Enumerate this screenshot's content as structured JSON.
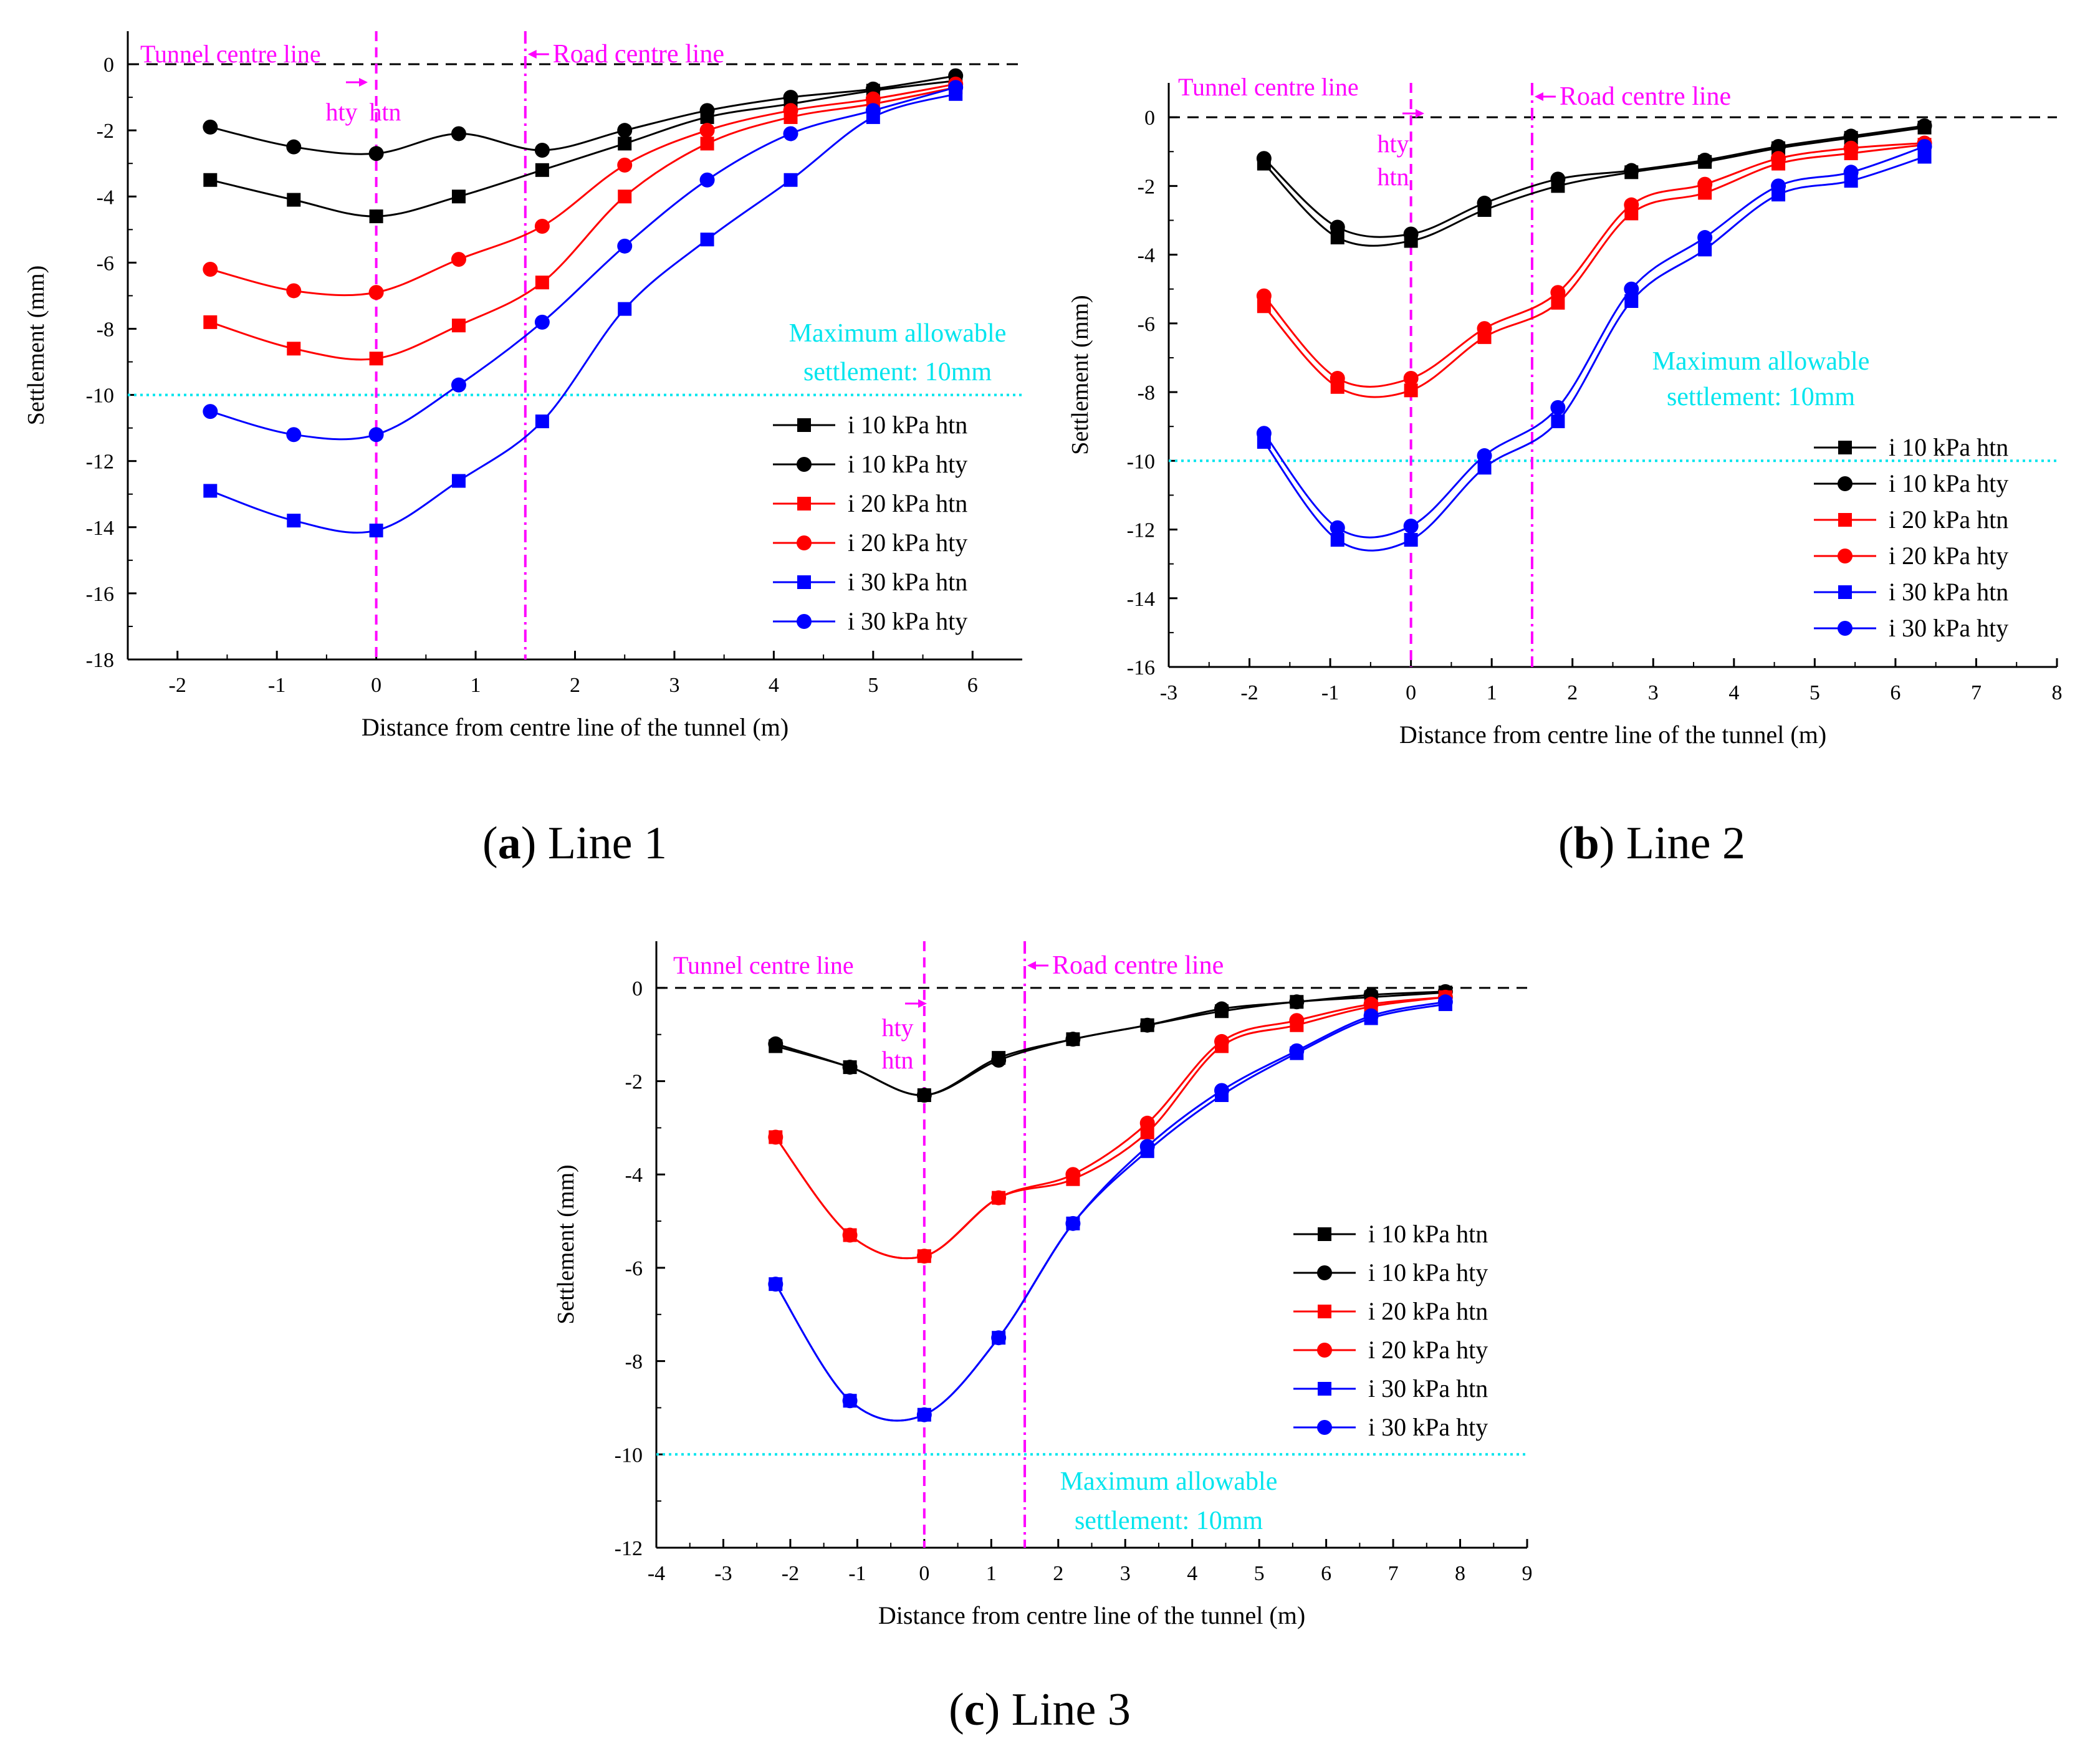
{
  "colors": {
    "black": "#000000",
    "red": "#ff0000",
    "blue": "#0000ff",
    "magenta": "#ff00ff",
    "cyan": "#00e5ee",
    "dash": "#000000"
  },
  "chart_data": [
    {
      "type": "line",
      "caption_letter": "a",
      "caption_text": " Line 1",
      "xlabel": "Distance from centre line of the tunnel (m)",
      "ylabel": "Settlement  (mm)",
      "xlim": [
        -2.5,
        6.5
      ],
      "ylim": [
        -18,
        1
      ],
      "xticks": [
        -2,
        -1,
        0,
        1,
        2,
        3,
        4,
        5,
        6
      ],
      "yticks": [
        0,
        -2,
        -4,
        -6,
        -8,
        -10,
        -12,
        -14,
        -16,
        -18
      ],
      "tunnel_label": "Tunnel centre line",
      "road_label": "Road centre line",
      "tunnel_x": 0,
      "road_x": 1.5,
      "hty_label": "hty",
      "htn_label": "htn",
      "limit_y": -10,
      "limit_label_1": "Maximum allowable",
      "limit_label_2": "settlement: 10mm",
      "series": [
        {
          "name": "i 10 kPa htn",
          "color": "black",
          "marker": "square",
          "x": [
            -1.67,
            -0.83,
            0,
            0.83,
            1.67,
            2.5,
            3.33,
            4.17,
            5.0,
            5.83
          ],
          "values": [
            -3.5,
            -4.1,
            -4.6,
            -4.0,
            -3.2,
            -2.4,
            -1.6,
            -1.2,
            -0.8,
            -0.5
          ]
        },
        {
          "name": "i 10 kPa hty",
          "color": "black",
          "marker": "circle",
          "x": [
            -1.67,
            -0.83,
            0,
            0.83,
            1.67,
            2.5,
            3.33,
            4.17,
            5.0,
            5.83
          ],
          "values": [
            -1.9,
            -2.5,
            -2.7,
            -2.1,
            -2.6,
            -2.0,
            -1.4,
            -1.0,
            -0.75,
            -0.35
          ]
        },
        {
          "name": "i 20 kPa htn",
          "color": "red",
          "marker": "square",
          "x": [
            -1.67,
            -0.83,
            0,
            0.83,
            1.67,
            2.5,
            3.33,
            4.17,
            5.0,
            5.83
          ],
          "values": [
            -7.8,
            -8.6,
            -8.9,
            -7.9,
            -6.6,
            -4.0,
            -2.4,
            -1.6,
            -1.2,
            -0.7
          ]
        },
        {
          "name": "i 20 kPa hty",
          "color": "red",
          "marker": "circle",
          "x": [
            -1.67,
            -0.83,
            0,
            0.83,
            1.67,
            2.5,
            3.33,
            4.17,
            5.0,
            5.83
          ],
          "values": [
            -6.2,
            -6.85,
            -6.9,
            -5.9,
            -4.9,
            -3.05,
            -2.0,
            -1.4,
            -1.05,
            -0.6
          ]
        },
        {
          "name": "i 30 kPa htn",
          "color": "blue",
          "marker": "square",
          "x": [
            -1.67,
            -0.83,
            0,
            0.83,
            1.67,
            2.5,
            3.33,
            4.17,
            5.0,
            5.83
          ],
          "values": [
            -12.9,
            -13.8,
            -14.1,
            -12.6,
            -10.8,
            -7.4,
            -5.3,
            -3.5,
            -1.6,
            -0.9
          ]
        },
        {
          "name": "i 30 kPa hty",
          "color": "blue",
          "marker": "circle",
          "x": [
            -1.67,
            -0.83,
            0,
            0.83,
            1.67,
            2.5,
            3.33,
            4.17,
            5.0,
            5.83
          ],
          "values": [
            -10.5,
            -11.2,
            -11.2,
            -9.7,
            -7.8,
            -5.5,
            -3.5,
            -2.1,
            -1.4,
            -0.7
          ]
        }
      ]
    },
    {
      "type": "line",
      "caption_letter": "b",
      "caption_text": " Line 2",
      "xlabel": "Distance from centre line of the tunnel (m)",
      "ylabel": "Settlement  (mm)",
      "xlim": [
        -3,
        8
      ],
      "ylim": [
        -16,
        1
      ],
      "xticks": [
        -3,
        -2,
        -1,
        0,
        1,
        2,
        3,
        4,
        5,
        6,
        7,
        8
      ],
      "yticks": [
        0,
        -2,
        -4,
        -6,
        -8,
        -10,
        -12,
        -14,
        -16
      ],
      "tunnel_label": "Tunnel centre line",
      "road_label": "Road centre line",
      "tunnel_x": 0,
      "road_x": 1.5,
      "hty_label": "hty",
      "htn_label": "htn",
      "limit_y": -10,
      "limit_label_1": "Maximum allowable",
      "limit_label_2": "settlement: 10mm",
      "series": [
        {
          "name": "i 10 kPa htn",
          "color": "black",
          "marker": "square",
          "x": [
            -1.82,
            -0.91,
            0,
            0.91,
            1.82,
            2.73,
            3.64,
            4.55,
            5.45,
            6.36
          ],
          "values": [
            -1.35,
            -3.5,
            -3.6,
            -2.7,
            -2.0,
            -1.6,
            -1.3,
            -0.9,
            -0.6,
            -0.3
          ]
        },
        {
          "name": "i 10 kPa hty",
          "color": "black",
          "marker": "circle",
          "x": [
            -1.82,
            -0.91,
            0,
            0.91,
            1.82,
            2.73,
            3.64,
            4.55,
            5.45,
            6.36
          ],
          "values": [
            -1.2,
            -3.2,
            -3.4,
            -2.5,
            -1.8,
            -1.55,
            -1.25,
            -0.85,
            -0.55,
            -0.25
          ]
        },
        {
          "name": "i 20 kPa htn",
          "color": "red",
          "marker": "square",
          "x": [
            -1.82,
            -0.91,
            0,
            0.91,
            1.82,
            2.73,
            3.64,
            4.55,
            5.45,
            6.36
          ],
          "values": [
            -5.5,
            -7.85,
            -7.95,
            -6.4,
            -5.4,
            -2.8,
            -2.2,
            -1.35,
            -1.05,
            -0.8
          ]
        },
        {
          "name": "i 20 kPa hty",
          "color": "red",
          "marker": "circle",
          "x": [
            -1.82,
            -0.91,
            0,
            0.91,
            1.82,
            2.73,
            3.64,
            4.55,
            5.45,
            6.36
          ],
          "values": [
            -5.2,
            -7.6,
            -7.6,
            -6.15,
            -5.1,
            -2.55,
            -1.95,
            -1.2,
            -0.9,
            -0.75
          ]
        },
        {
          "name": "i 30 kPa htn",
          "color": "blue",
          "marker": "square",
          "x": [
            -1.82,
            -0.91,
            0,
            0.91,
            1.82,
            2.73,
            3.64,
            4.55,
            5.45,
            6.36
          ],
          "values": [
            -9.45,
            -12.3,
            -12.3,
            -10.2,
            -8.85,
            -5.35,
            -3.85,
            -2.25,
            -1.85,
            -1.15
          ]
        },
        {
          "name": "i 30 kPa hty",
          "color": "blue",
          "marker": "circle",
          "x": [
            -1.82,
            -0.91,
            0,
            0.91,
            1.82,
            2.73,
            3.64,
            4.55,
            5.45,
            6.36
          ],
          "values": [
            -9.2,
            -11.95,
            -11.9,
            -9.85,
            -8.45,
            -5.0,
            -3.5,
            -2.0,
            -1.6,
            -0.85
          ]
        }
      ]
    },
    {
      "type": "line",
      "caption_letter": "c",
      "caption_text": " Line 3",
      "xlabel": "Distance from centre line of the tunnel (m)",
      "ylabel": "Settlement  (mm)",
      "xlim": [
        -4,
        9
      ],
      "ylim": [
        -12,
        1
      ],
      "xticks": [
        -4,
        -3,
        -2,
        -1,
        0,
        1,
        2,
        3,
        4,
        5,
        6,
        7,
        8,
        9
      ],
      "yticks": [
        0,
        -2,
        -4,
        -6,
        -8,
        -10,
        -12
      ],
      "tunnel_label": "Tunnel centre line",
      "road_label": "Road centre line",
      "tunnel_x": 0,
      "road_x": 1.5,
      "hty_label": "hty",
      "htn_label": "htn",
      "limit_y": -10,
      "limit_label_1": "Maximum allowable",
      "limit_label_2": "settlement: 10mm",
      "series": [
        {
          "name": "i 10 kPa htn",
          "color": "black",
          "marker": "square",
          "x": [
            -2.22,
            -1.11,
            0,
            1.11,
            2.22,
            3.33,
            4.44,
            5.56,
            6.67,
            7.78
          ],
          "values": [
            -1.25,
            -1.7,
            -2.3,
            -1.5,
            -1.1,
            -0.8,
            -0.5,
            -0.3,
            -0.2,
            -0.1
          ]
        },
        {
          "name": "i 10 kPa hty",
          "color": "black",
          "marker": "circle",
          "x": [
            -2.22,
            -1.11,
            0,
            1.11,
            2.22,
            3.33,
            4.44,
            5.56,
            6.67,
            7.78
          ],
          "values": [
            -1.2,
            -1.7,
            -2.3,
            -1.55,
            -1.1,
            -0.8,
            -0.45,
            -0.3,
            -0.15,
            -0.08
          ]
        },
        {
          "name": "i 20 kPa htn",
          "color": "red",
          "marker": "square",
          "x": [
            -2.22,
            -1.11,
            0,
            1.11,
            2.22,
            3.33,
            4.44,
            5.56,
            6.67,
            7.78
          ],
          "values": [
            -3.2,
            -5.3,
            -5.75,
            -4.5,
            -4.1,
            -3.1,
            -1.25,
            -0.8,
            -0.4,
            -0.2
          ]
        },
        {
          "name": "i 20 kPa hty",
          "color": "red",
          "marker": "circle",
          "x": [
            -2.22,
            -1.11,
            0,
            1.11,
            2.22,
            3.33,
            4.44,
            5.56,
            6.67,
            7.78
          ],
          "values": [
            -3.2,
            -5.3,
            -5.75,
            -4.5,
            -4.0,
            -2.9,
            -1.15,
            -0.7,
            -0.35,
            -0.2
          ]
        },
        {
          "name": "i 30 kPa htn",
          "color": "blue",
          "marker": "square",
          "x": [
            -2.22,
            -1.11,
            0,
            1.11,
            2.22,
            3.33,
            4.44,
            5.56,
            6.67,
            7.78
          ],
          "values": [
            -6.35,
            -8.85,
            -9.15,
            -7.5,
            -5.05,
            -3.5,
            -2.3,
            -1.4,
            -0.65,
            -0.35
          ]
        },
        {
          "name": "i 30 kPa hty",
          "color": "blue",
          "marker": "circle",
          "x": [
            -2.22,
            -1.11,
            0,
            1.11,
            2.22,
            3.33,
            4.44,
            5.56,
            6.67,
            7.78
          ],
          "values": [
            -6.35,
            -8.85,
            -9.15,
            -7.5,
            -5.05,
            -3.4,
            -2.2,
            -1.35,
            -0.6,
            -0.3
          ]
        }
      ]
    }
  ]
}
